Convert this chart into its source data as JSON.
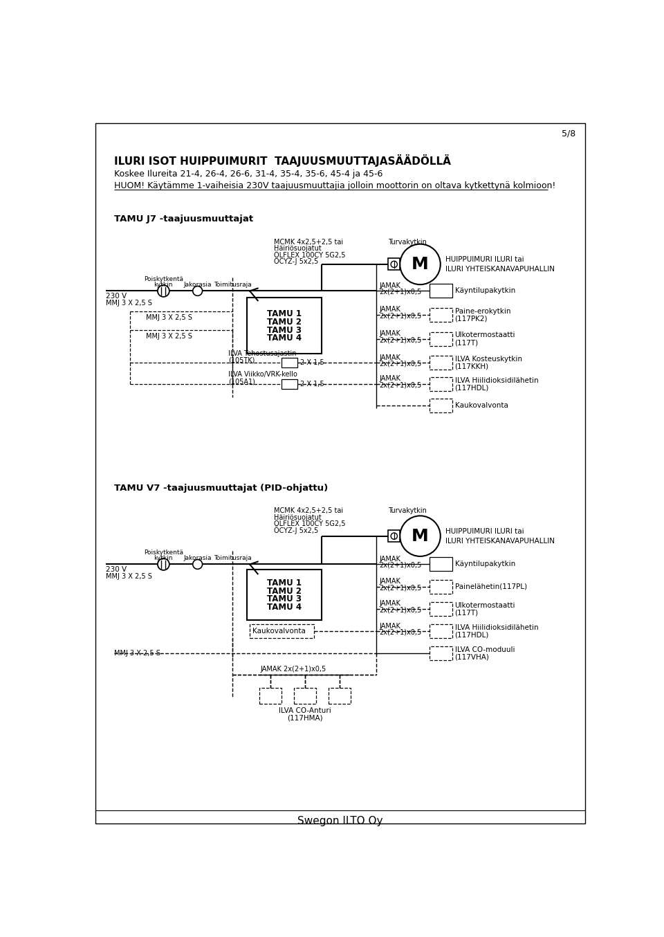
{
  "page_num": "5/8",
  "title1": "ILURI ISOT HUIPPUIMURIT  TAAJUUSMUUTTAJASÄÄDÖLLÄ",
  "title2": "Koskee Ilureita 21-4, 26-4, 26-6, 31-4, 35-4, 35-6, 45-4 ja 45-6",
  "title3": "HUOM! Käytämme 1-vaiheisia 230V taajuusmuuttajia jolloin moottorin on oltava kytkettynä kolmioon!",
  "section1_title": "TAMU J7 -taajuusmuuttajat",
  "section2_title": "TAMU V7 -taajuusmuuttajat (PID-ohjattu)",
  "footer": "Swegon ILTO Oy",
  "bg_color": "#ffffff"
}
